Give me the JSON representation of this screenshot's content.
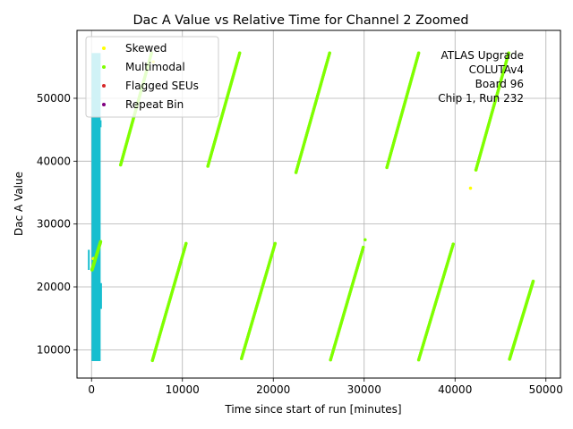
{
  "chart_data": {
    "type": "scatter",
    "title": "Dac A Value vs Relative Time for Channel 2 Zoomed",
    "xlabel": "Time since start of run [minutes]",
    "ylabel": "Dac A Value",
    "xlim": [
      -1600,
      51600
    ],
    "ylim": [
      5500,
      60800
    ],
    "xticks": [
      0,
      10000,
      20000,
      30000,
      40000,
      50000
    ],
    "yticks": [
      10000,
      20000,
      30000,
      40000,
      50000
    ],
    "grid": true,
    "legend_position": "top-left",
    "annotation": [
      "ATLAS Upgrade",
      "COLUTAv4",
      "Board 96",
      "Chip 1, Run 232"
    ],
    "series": [
      {
        "name": "Skewed",
        "color": "#ffff00",
        "points": [
          [
            41700,
            35700
          ],
          [
            42300,
            38600
          ],
          [
            6800,
            55800
          ],
          [
            200,
            24500
          ]
        ]
      },
      {
        "name": "Multimodal",
        "color": "#7fff00",
        "segments": [
          {
            "x0": 50,
            "y0": 22700,
            "x1": 1000,
            "y1": 27200
          },
          {
            "x0": 3200,
            "y0": 39400,
            "x1": 6600,
            "y1": 57200
          },
          {
            "x0": 6700,
            "y0": 8300,
            "x1": 10400,
            "y1": 26900
          },
          {
            "x0": 12800,
            "y0": 39200,
            "x1": 16300,
            "y1": 57200
          },
          {
            "x0": 16500,
            "y0": 8600,
            "x1": 20200,
            "y1": 26900
          },
          {
            "x0": 22500,
            "y0": 38200,
            "x1": 26200,
            "y1": 57200
          },
          {
            "x0": 26300,
            "y0": 8400,
            "x1": 29900,
            "y1": 26300
          },
          {
            "x0": 32500,
            "y0": 39000,
            "x1": 36000,
            "y1": 57200
          },
          {
            "x0": 36000,
            "y0": 8400,
            "x1": 39800,
            "y1": 26800
          },
          {
            "x0": 42300,
            "y0": 38600,
            "x1": 45900,
            "y1": 57200
          },
          {
            "x0": 46000,
            "y0": 8500,
            "x1": 48600,
            "y1": 20900
          }
        ],
        "points": [
          [
            30100,
            27500
          ]
        ]
      },
      {
        "name": "Flagged SEUs",
        "color": "#d62728",
        "points": []
      },
      {
        "name": "Repeat Bin",
        "color": "#800080",
        "points": []
      }
    ],
    "dense_band": {
      "color": "#17becf",
      "x_range": [
        0,
        1000
      ],
      "y_range": [
        8200,
        57200
      ]
    }
  }
}
